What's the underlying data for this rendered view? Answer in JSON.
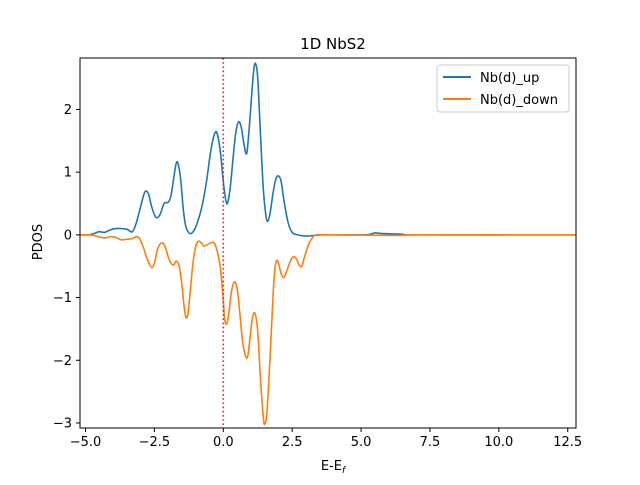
{
  "chart_data": {
    "type": "line",
    "title": "1D NbS2",
    "xlabel_main": "E-E",
    "xlabel_sub": "f",
    "ylabel": "PDOS",
    "xlim": [
      -5.2,
      12.8
    ],
    "ylim": [
      -3.08,
      2.82
    ],
    "xticks": [
      -5.0,
      -2.5,
      0.0,
      2.5,
      5.0,
      7.5,
      10.0,
      12.5
    ],
    "xtick_labels": [
      "−5.0",
      "−2.5",
      "0.0",
      "2.5",
      "5.0",
      "7.5",
      "10.0",
      "12.5"
    ],
    "yticks": [
      -3,
      -2,
      -1,
      0,
      1,
      2
    ],
    "ytick_labels": [
      "−3",
      "−2",
      "−1",
      "0",
      "1",
      "2"
    ],
    "grid": false,
    "legend_position": "top-right",
    "fermi_line": {
      "x": 0.0,
      "style": "dotted",
      "color": "#d62728"
    },
    "series": [
      {
        "name": "Nb(d)_up",
        "color": "#1f77b4",
        "points": [
          [
            -5.2,
            0.0
          ],
          [
            -4.9,
            0.0
          ],
          [
            -4.7,
            0.02
          ],
          [
            -4.5,
            0.05
          ],
          [
            -4.3,
            0.04
          ],
          [
            -4.1,
            0.08
          ],
          [
            -3.9,
            0.1
          ],
          [
            -3.7,
            0.1
          ],
          [
            -3.5,
            0.09
          ],
          [
            -3.3,
            0.05
          ],
          [
            -3.15,
            0.2
          ],
          [
            -3.0,
            0.45
          ],
          [
            -2.85,
            0.68
          ],
          [
            -2.72,
            0.66
          ],
          [
            -2.6,
            0.45
          ],
          [
            -2.45,
            0.28
          ],
          [
            -2.3,
            0.32
          ],
          [
            -2.15,
            0.5
          ],
          [
            -2.0,
            0.52
          ],
          [
            -1.9,
            0.62
          ],
          [
            -1.8,
            0.9
          ],
          [
            -1.72,
            1.12
          ],
          [
            -1.65,
            1.15
          ],
          [
            -1.55,
            0.9
          ],
          [
            -1.45,
            0.4
          ],
          [
            -1.35,
            0.12
          ],
          [
            -1.2,
            0.02
          ],
          [
            -1.05,
            0.08
          ],
          [
            -0.9,
            0.25
          ],
          [
            -0.75,
            0.5
          ],
          [
            -0.6,
            0.88
          ],
          [
            -0.45,
            1.35
          ],
          [
            -0.3,
            1.63
          ],
          [
            -0.2,
            1.58
          ],
          [
            -0.1,
            1.3
          ],
          [
            0.0,
            0.85
          ],
          [
            0.08,
            0.58
          ],
          [
            0.15,
            0.5
          ],
          [
            0.25,
            0.75
          ],
          [
            0.35,
            1.2
          ],
          [
            0.45,
            1.62
          ],
          [
            0.55,
            1.8
          ],
          [
            0.65,
            1.72
          ],
          [
            0.75,
            1.45
          ],
          [
            0.85,
            1.3
          ],
          [
            0.95,
            1.75
          ],
          [
            1.05,
            2.35
          ],
          [
            1.12,
            2.68
          ],
          [
            1.18,
            2.72
          ],
          [
            1.25,
            2.5
          ],
          [
            1.35,
            1.6
          ],
          [
            1.45,
            0.75
          ],
          [
            1.55,
            0.3
          ],
          [
            1.62,
            0.22
          ],
          [
            1.7,
            0.35
          ],
          [
            1.8,
            0.65
          ],
          [
            1.9,
            0.88
          ],
          [
            2.0,
            0.94
          ],
          [
            2.1,
            0.85
          ],
          [
            2.2,
            0.55
          ],
          [
            2.35,
            0.2
          ],
          [
            2.5,
            0.04
          ],
          [
            2.7,
            0.0
          ],
          [
            3.0,
            -0.02
          ],
          [
            3.3,
            -0.01
          ],
          [
            3.6,
            0.0
          ],
          [
            4.5,
            0.0
          ],
          [
            5.2,
            0.0
          ],
          [
            5.5,
            0.03
          ],
          [
            5.8,
            0.02
          ],
          [
            6.5,
            0.01
          ],
          [
            7.0,
            0.0
          ],
          [
            12.8,
            0.0
          ]
        ]
      },
      {
        "name": "Nb(d)_down",
        "color": "#ff7f0e",
        "points": [
          [
            -5.2,
            0.0
          ],
          [
            -4.9,
            0.0
          ],
          [
            -4.6,
            -0.02
          ],
          [
            -4.3,
            -0.05
          ],
          [
            -4.1,
            -0.03
          ],
          [
            -3.9,
            -0.04
          ],
          [
            -3.7,
            -0.08
          ],
          [
            -3.5,
            -0.07
          ],
          [
            -3.3,
            -0.06
          ],
          [
            -3.15,
            -0.03
          ],
          [
            -3.05,
            -0.05
          ],
          [
            -2.9,
            -0.2
          ],
          [
            -2.75,
            -0.4
          ],
          [
            -2.6,
            -0.52
          ],
          [
            -2.5,
            -0.45
          ],
          [
            -2.4,
            -0.25
          ],
          [
            -2.3,
            -0.15
          ],
          [
            -2.2,
            -0.13
          ],
          [
            -2.1,
            -0.2
          ],
          [
            -2.0,
            -0.35
          ],
          [
            -1.9,
            -0.45
          ],
          [
            -1.8,
            -0.48
          ],
          [
            -1.7,
            -0.42
          ],
          [
            -1.6,
            -0.5
          ],
          [
            -1.5,
            -0.8
          ],
          [
            -1.42,
            -1.15
          ],
          [
            -1.35,
            -1.32
          ],
          [
            -1.28,
            -1.25
          ],
          [
            -1.2,
            -0.9
          ],
          [
            -1.1,
            -0.45
          ],
          [
            -1.0,
            -0.18
          ],
          [
            -0.9,
            -0.1
          ],
          [
            -0.8,
            -0.13
          ],
          [
            -0.7,
            -0.18
          ],
          [
            -0.55,
            -0.15
          ],
          [
            -0.4,
            -0.12
          ],
          [
            -0.3,
            -0.15
          ],
          [
            -0.2,
            -0.3
          ],
          [
            -0.1,
            -0.55
          ],
          [
            0.0,
            -1.05
          ],
          [
            0.05,
            -1.35
          ],
          [
            0.12,
            -1.42
          ],
          [
            0.2,
            -1.25
          ],
          [
            0.3,
            -0.9
          ],
          [
            0.4,
            -0.75
          ],
          [
            0.5,
            -0.85
          ],
          [
            0.6,
            -1.25
          ],
          [
            0.7,
            -1.7
          ],
          [
            0.8,
            -1.92
          ],
          [
            0.88,
            -1.95
          ],
          [
            0.95,
            -1.72
          ],
          [
            1.05,
            -1.35
          ],
          [
            1.15,
            -1.25
          ],
          [
            1.25,
            -1.55
          ],
          [
            1.35,
            -2.3
          ],
          [
            1.45,
            -2.9
          ],
          [
            1.5,
            -3.02
          ],
          [
            1.58,
            -2.85
          ],
          [
            1.68,
            -2.1
          ],
          [
            1.78,
            -1.2
          ],
          [
            1.85,
            -0.65
          ],
          [
            1.92,
            -0.42
          ],
          [
            2.0,
            -0.45
          ],
          [
            2.1,
            -0.62
          ],
          [
            2.2,
            -0.68
          ],
          [
            2.3,
            -0.58
          ],
          [
            2.45,
            -0.4
          ],
          [
            2.55,
            -0.35
          ],
          [
            2.65,
            -0.38
          ],
          [
            2.75,
            -0.48
          ],
          [
            2.85,
            -0.5
          ],
          [
            2.95,
            -0.35
          ],
          [
            3.1,
            -0.15
          ],
          [
            3.25,
            -0.04
          ],
          [
            3.4,
            0.0
          ],
          [
            4.0,
            0.0
          ],
          [
            6.5,
            -0.01
          ],
          [
            7.0,
            0.0
          ],
          [
            12.8,
            0.0
          ]
        ]
      }
    ]
  }
}
